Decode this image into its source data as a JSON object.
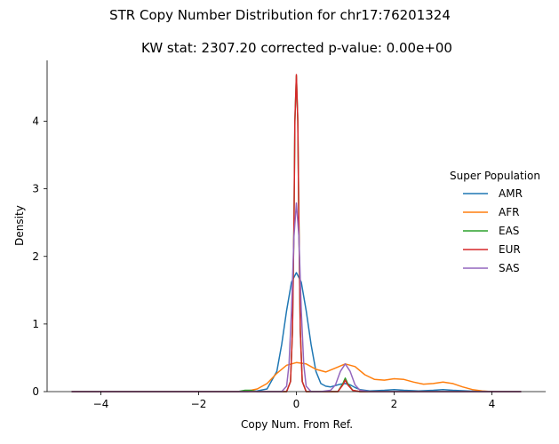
{
  "chart_data": {
    "type": "line",
    "suptitle": "STR Copy Number Distribution for chr17:76201324",
    "title": "KW stat: 2307.20    corrected p-value: 0.00e+00",
    "xlabel": "Copy Num. From Ref.",
    "ylabel": "Density",
    "xlim": [
      -5.1,
      5.1
    ],
    "ylim": [
      0,
      4.9
    ],
    "x_ticks": [
      -4,
      -2,
      0,
      2,
      4
    ],
    "x_tick_labels": [
      "−4",
      "−2",
      "0",
      "2",
      "4"
    ],
    "y_ticks": [
      0,
      1,
      2,
      3,
      4
    ],
    "y_tick_labels": [
      "0",
      "1",
      "2",
      "3",
      "4"
    ],
    "legend": {
      "title": "Super Population",
      "placement": "center-right"
    },
    "series": [
      {
        "name": "AMR",
        "color": "#1f77b4",
        "x": [
          -4.6,
          -1.0,
          -0.8,
          -0.6,
          -0.4,
          -0.3,
          -0.2,
          -0.1,
          0.0,
          0.1,
          0.2,
          0.3,
          0.4,
          0.5,
          0.6,
          0.7,
          0.8,
          0.9,
          1.0,
          1.1,
          1.2,
          1.3,
          1.5,
          1.8,
          2.0,
          2.2,
          2.5,
          2.8,
          3.0,
          3.2,
          3.5,
          3.8,
          4.6
        ],
        "y": [
          0.0,
          0.0,
          0.01,
          0.04,
          0.3,
          0.7,
          1.2,
          1.62,
          1.76,
          1.62,
          1.2,
          0.7,
          0.3,
          0.12,
          0.08,
          0.07,
          0.09,
          0.11,
          0.12,
          0.1,
          0.06,
          0.03,
          0.01,
          0.02,
          0.03,
          0.02,
          0.01,
          0.02,
          0.03,
          0.02,
          0.01,
          0.0,
          0.0
        ]
      },
      {
        "name": "AFR",
        "color": "#ff7f0e",
        "x": [
          -4.6,
          -1.2,
          -1.0,
          -0.8,
          -0.6,
          -0.4,
          -0.2,
          0.0,
          0.2,
          0.4,
          0.6,
          0.8,
          1.0,
          1.2,
          1.4,
          1.6,
          1.8,
          2.0,
          2.2,
          2.4,
          2.6,
          2.8,
          3.0,
          3.2,
          3.4,
          3.6,
          3.8,
          4.0,
          4.6
        ],
        "y": [
          0.0,
          0.0,
          0.01,
          0.04,
          0.12,
          0.27,
          0.39,
          0.43,
          0.41,
          0.33,
          0.29,
          0.35,
          0.41,
          0.37,
          0.25,
          0.18,
          0.17,
          0.19,
          0.18,
          0.14,
          0.11,
          0.12,
          0.14,
          0.12,
          0.07,
          0.03,
          0.01,
          0.0,
          0.0
        ]
      },
      {
        "name": "EAS",
        "color": "#2ca02c",
        "x": [
          -4.6,
          -1.2,
          -1.05,
          -0.95,
          -0.8,
          -0.2,
          -0.12,
          -0.08,
          -0.05,
          -0.03,
          0.0,
          0.03,
          0.05,
          0.08,
          0.12,
          0.2,
          0.85,
          0.95,
          1.0,
          1.05,
          1.15,
          1.3,
          4.6
        ],
        "y": [
          0.0,
          0.0,
          0.02,
          0.02,
          0.0,
          0.0,
          0.15,
          0.9,
          2.5,
          4.0,
          4.67,
          4.0,
          2.5,
          0.9,
          0.15,
          0.0,
          0.0,
          0.12,
          0.2,
          0.12,
          0.02,
          0.0,
          0.0
        ]
      },
      {
        "name": "EUR",
        "color": "#d62728",
        "x": [
          -4.6,
          -0.2,
          -0.12,
          -0.08,
          -0.05,
          -0.03,
          0.0,
          0.03,
          0.05,
          0.08,
          0.12,
          0.2,
          0.85,
          0.95,
          1.0,
          1.05,
          1.15,
          1.3,
          4.6
        ],
        "y": [
          0.0,
          0.0,
          0.15,
          0.9,
          2.5,
          4.0,
          4.69,
          4.0,
          2.5,
          0.9,
          0.15,
          0.0,
          0.0,
          0.1,
          0.17,
          0.1,
          0.02,
          0.0,
          0.0
        ]
      },
      {
        "name": "SAS",
        "color": "#9467bd",
        "x": [
          -4.6,
          -0.3,
          -0.2,
          -0.15,
          -0.1,
          -0.05,
          0.0,
          0.05,
          0.1,
          0.15,
          0.2,
          0.3,
          0.5,
          0.7,
          0.8,
          0.9,
          1.0,
          1.1,
          1.2,
          1.3,
          1.5,
          4.6
        ],
        "y": [
          0.0,
          0.0,
          0.08,
          0.4,
          1.2,
          2.3,
          2.79,
          2.3,
          1.2,
          0.4,
          0.08,
          0.0,
          0.0,
          0.02,
          0.1,
          0.3,
          0.41,
          0.3,
          0.1,
          0.02,
          0.0,
          0.0
        ]
      }
    ]
  }
}
